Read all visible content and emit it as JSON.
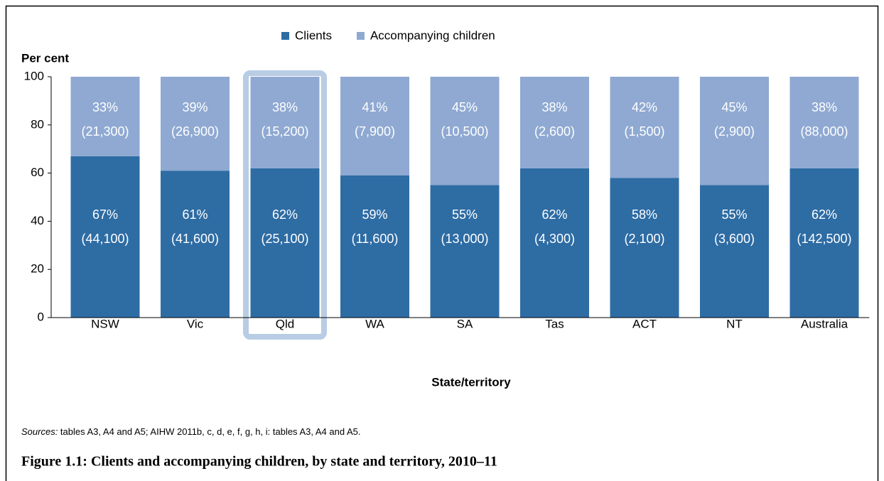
{
  "chart_data": {
    "type": "stacked_bar",
    "y_label": "Per cent",
    "x_label": "State/territory",
    "categories": [
      "NSW",
      "Vic",
      "Qld",
      "WA",
      "SA",
      "Tas",
      "ACT",
      "NT",
      "Australia"
    ],
    "series": [
      {
        "name": "Clients",
        "color": "#2e6ca4",
        "values": [
          67,
          61,
          62,
          59,
          55,
          62,
          58,
          55,
          62
        ],
        "value_labels": [
          "67%",
          "61%",
          "62%",
          "59%",
          "55%",
          "62%",
          "58%",
          "55%",
          "62%"
        ],
        "counts": [
          44100,
          41600,
          25100,
          11600,
          13000,
          4300,
          2100,
          3600,
          142500
        ],
        "count_labels": [
          "(44,100)",
          "(41,600)",
          "(25,100)",
          "(11,600)",
          "(13,000)",
          "(4,300)",
          "(2,100)",
          "(3,600)",
          "(142,500)"
        ]
      },
      {
        "name": "Accompanying children",
        "color": "#8fa9d2",
        "values": [
          33,
          39,
          38,
          41,
          45,
          38,
          42,
          45,
          38
        ],
        "value_labels": [
          "33%",
          "39%",
          "38%",
          "41%",
          "45%",
          "38%",
          "42%",
          "45%",
          "38%"
        ],
        "counts": [
          21300,
          26900,
          15200,
          7900,
          10500,
          2600,
          1500,
          2900,
          88000
        ],
        "count_labels": [
          "(21,300)",
          "(26,900)",
          "(15,200)",
          "(7,900)",
          "(10,500)",
          "(2,600)",
          "(1,500)",
          "(2,900)",
          "(88,000)"
        ]
      }
    ],
    "ylim": [
      0,
      100
    ],
    "yticks": [
      0,
      20,
      40,
      60,
      80,
      100
    ],
    "grid": false,
    "highlight": "Qld",
    "sources_label": "Sources:",
    "sources_text": " tables A3, A4 and A5; AIHW 2011b, c, d, e, f, g, h, i: tables A3, A4 and A5.",
    "caption": "Figure 1.1: Clients and accompanying children, by state and territory, 2010–11"
  }
}
